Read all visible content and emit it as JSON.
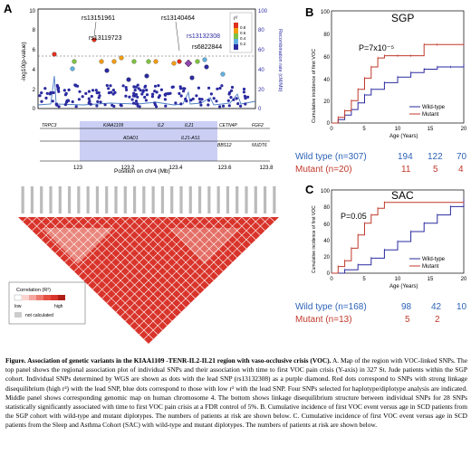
{
  "panels": {
    "a": "A",
    "b": "B",
    "c": "C"
  },
  "assoc": {
    "y_label": "-log10(p-value)",
    "y2_label": "Recombination rate (cM/Mb)",
    "y_ticks": [
      "10",
      "8",
      "6",
      "4",
      "2",
      "0"
    ],
    "y2_ticks": [
      "100",
      "80",
      "60",
      "40",
      "20",
      "0"
    ],
    "legend_title": "r²",
    "legend_levels": [
      "0.8",
      "0.6",
      "0.4",
      "0.2"
    ],
    "legend_colors": [
      "#e0301e",
      "#f39c12",
      "#7fc241",
      "#61b0e0",
      "#2a2aa0"
    ],
    "snps": [
      {
        "name": "rs13151961",
        "lead": false
      },
      {
        "name": "rs13119723",
        "lead": false
      },
      {
        "name": "rs13140464",
        "lead": false
      },
      {
        "name": "rs13132308",
        "lead": true
      },
      {
        "name": "rs6822844",
        "lead": false
      }
    ]
  },
  "genes": {
    "top": [
      "TRPC3",
      "KIAA1109",
      "IL2",
      "IL21",
      "CETN4P",
      "FGF2"
    ],
    "bottom": [
      "ADAD1",
      "IL21-AS1",
      "BBS12",
      "NUDT6"
    ],
    "x_ticks": [
      "123",
      "123.2",
      "123.4",
      "123.6",
      "123.8"
    ],
    "x_label": "Position on chr4 (Mb)"
  },
  "ld": {
    "legend_title": "Correlation (R²)",
    "low": "low",
    "high": "high",
    "not_calculated": "not calculated"
  },
  "sgp": {
    "title": "SGP",
    "pval": "P=7x10⁻⁵",
    "y_label": "Cumulative incidence of first VOC",
    "x_label": "Age (Years)",
    "legend": [
      "Wild-type",
      "Mutant"
    ],
    "x_ticks": [
      "0",
      "5",
      "10",
      "15",
      "20"
    ],
    "y_ticks": [
      "100",
      "80",
      "60",
      "40",
      "20",
      "0"
    ]
  },
  "sac": {
    "title": "SAC",
    "pval": "P=0.05",
    "y_label": "Cumulative incidence of first VOC",
    "x_label": "Age (Years)",
    "legend": [
      "Wild-type",
      "Mutant"
    ],
    "x_ticks": [
      "0",
      "5",
      "10",
      "15",
      "20"
    ],
    "y_ticks": [
      "100",
      "80",
      "60",
      "40",
      "20",
      "0"
    ]
  },
  "risk_sgp": {
    "wt_label": "Wild type (n=307)",
    "wt": [
      "194",
      "122",
      "70"
    ],
    "mut_label": "Mutant (n=20)",
    "mut": [
      "11",
      "5",
      "4"
    ]
  },
  "risk_sac": {
    "wt_label": "Wild type (n=168)",
    "wt": [
      "98",
      "42",
      "10"
    ],
    "mut_label": "Mutant (n=13)",
    "mut": [
      "5",
      "2"
    ]
  },
  "colors": {
    "wildtype": "#2a2aa0",
    "mutant": "#c0392b",
    "ld_red": "#e0301e",
    "accent_blue": "#2d63b8"
  },
  "chart_data": [
    {
      "type": "line",
      "title": "SGP",
      "xlabel": "Age (Years)",
      "ylabel": "Cumulative incidence of first VOC",
      "xlim": [
        0,
        20
      ],
      "ylim": [
        0,
        100
      ],
      "series": [
        {
          "name": "Wild-type",
          "x": [
            0,
            1,
            2,
            3,
            4,
            5,
            6,
            8,
            10,
            12,
            14,
            16,
            18,
            20
          ],
          "values": [
            0,
            3,
            7,
            12,
            18,
            25,
            30,
            36,
            41,
            45,
            48,
            50,
            50,
            52
          ]
        },
        {
          "name": "Mutant",
          "x": [
            0,
            1,
            2,
            3,
            4,
            5,
            6,
            7,
            8,
            10,
            12,
            14,
            16,
            20
          ],
          "values": [
            0,
            5,
            11,
            20,
            30,
            40,
            50,
            58,
            60,
            60,
            60,
            70,
            70,
            70
          ]
        }
      ]
    },
    {
      "type": "line",
      "title": "SAC",
      "xlabel": "Age (Years)",
      "ylabel": "Cumulative incidence of first VOC",
      "xlim": [
        0,
        20
      ],
      "ylim": [
        0,
        100
      ],
      "series": [
        {
          "name": "Wild-type",
          "x": [
            0,
            2,
            4,
            6,
            8,
            10,
            12,
            14,
            16,
            18,
            20
          ],
          "values": [
            0,
            4,
            10,
            18,
            28,
            38,
            50,
            60,
            70,
            80,
            88
          ]
        },
        {
          "name": "Mutant",
          "x": [
            0,
            1,
            2,
            3,
            4,
            5,
            6,
            7,
            8,
            20
          ],
          "values": [
            0,
            8,
            15,
            30,
            46,
            60,
            70,
            78,
            85,
            85
          ]
        }
      ]
    }
  ],
  "caption": {
    "bold": "Figure. Association of genetic variants  in the KIAA1109 -TENR-IL2-IL21 region with vaso-occlusive crisis (VOC).",
    "text": " A. Map of the region with VOC-linked SNPs. The top panel shows the regional association plot of individual SNPs and their association with time to first VOC pain crisis (Y-axis) in 327 St. Jude patients within the SGP cohort. Individual SNPs determined by WGS are shown as dots with the lead SNP (rs13132308) as a purple diamond. Red dots correspond to SNPs with strong linkage disequilibrium (high r²) with the lead SNP, blue dots correspond to those with low r² with the lead SNP. Four SNPs selected for haplotype/diplotype analysis are indicated. Middle panel shows corresponding genomic map on human chromosome 4. The bottom shows linkage disequilibrium structure between individual SNPs for 28 SNPs statistically significantly associated with time to first VOC pain crisis at a FDR control of 5%. B. Cumulative incidence of first VOC event versus age in SCD patients from the SGP cohort with wild-type and mutant diplotypes. The numbers of patients at risk are shown below. C. Cumulative incidence of first VOC event versus age in SCD patients from the Sleep and Asthma Cohort (SAC) with wild-type and mutant diplotypes. The numbers of patients at risk are shown below."
  }
}
